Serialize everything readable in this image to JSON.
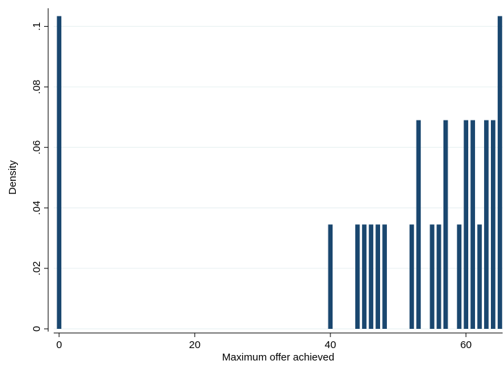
{
  "chart_data": {
    "type": "bar",
    "x": [
      0,
      40,
      44,
      45,
      46,
      47,
      48,
      52,
      53,
      55,
      56,
      57,
      59,
      60,
      61,
      62,
      63,
      64,
      65
    ],
    "values": [
      0.1034,
      0.0345,
      0.0345,
      0.0345,
      0.0345,
      0.0345,
      0.0345,
      0.0345,
      0.069,
      0.0345,
      0.0345,
      0.069,
      0.0345,
      0.069,
      0.069,
      0.0345,
      0.069,
      0.069,
      0.1034
    ],
    "color": "#1a476f",
    "xlabel": "Maximum offer achieved",
    "ylabel": "Density",
    "xlim": [
      -0.8,
      65.4
    ],
    "ylim": [
      0,
      0.106
    ],
    "xticks": [
      0,
      20,
      40,
      60
    ],
    "yticks": [
      0,
      {
        "value": 0.02,
        "label": ".02"
      },
      {
        "value": 0.04,
        "label": ".04"
      },
      {
        "value": 0.06,
        "label": ".06"
      },
      {
        "value": 0.08,
        "label": ".08"
      },
      {
        "value": 0.1,
        "label": ".1"
      }
    ],
    "grid": true
  }
}
